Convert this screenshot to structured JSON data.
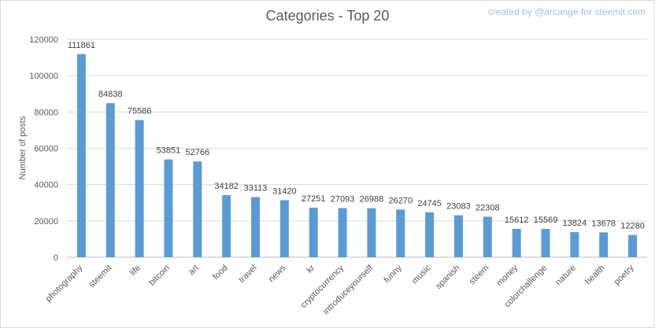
{
  "chart_data": {
    "type": "bar",
    "title": "Categories - Top 20",
    "watermark": "created by @arcange for steemit.com",
    "ylabel": "Number of posts",
    "xlabel": "",
    "ylim": [
      0,
      120000
    ],
    "yticks": [
      0,
      20000,
      40000,
      60000,
      80000,
      100000,
      120000
    ],
    "grid": true,
    "bar_color": "#5b9bd5",
    "categories": [
      "photography",
      "steemit",
      "life",
      "bitcoin",
      "art",
      "food",
      "travel",
      "news",
      "kr",
      "cryptocurrency",
      "introduceyourself",
      "funny",
      "music",
      "spanish",
      "steem",
      "money",
      "colorchallenge",
      "nature",
      "health",
      "poetry"
    ],
    "values": [
      111861,
      84838,
      75586,
      53851,
      52766,
      34182,
      33113,
      31420,
      27251,
      27093,
      26988,
      26270,
      24745,
      23083,
      22308,
      15612,
      15569,
      13824,
      13678,
      12280
    ]
  }
}
